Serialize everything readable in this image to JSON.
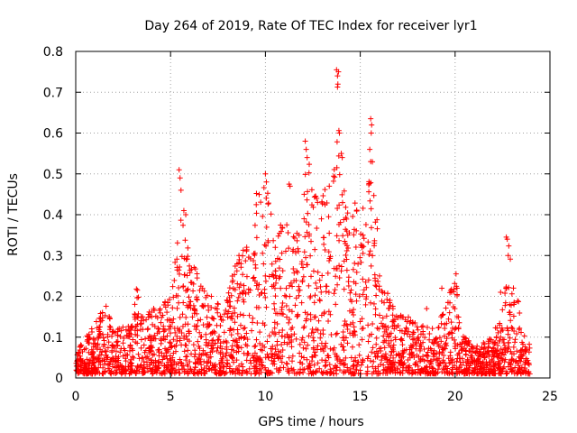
{
  "chart_data": {
    "type": "scatter",
    "title": "Day 264 of 2019, Rate Of TEC Index for receiver lyr1",
    "xlabel": "GPS time / hours",
    "ylabel": "ROTI / TECUs",
    "xlim": [
      0,
      25
    ],
    "ylim": [
      0,
      0.8
    ],
    "xticks": [
      0,
      5,
      10,
      15,
      20,
      25
    ],
    "xtick_labels": [
      "0",
      "5",
      "10",
      "15",
      "20",
      "25"
    ],
    "yticks": [
      0,
      0.1,
      0.2,
      0.3,
      0.4,
      0.5,
      0.6,
      0.7,
      0.8
    ],
    "ytick_labels": [
      "0",
      "0.1",
      "0.2",
      "0.3",
      "0.4",
      "0.5",
      "0.6",
      "0.7",
      "0.8"
    ],
    "grid": true,
    "marker": "+",
    "color": "#ff0000",
    "envelope": {
      "x": [
        0,
        0.5,
        1.0,
        1.3,
        1.5,
        2.0,
        3.0,
        3.2,
        3.5,
        4.0,
        5.0,
        5.4,
        5.6,
        6.0,
        7.0,
        8.0,
        8.5,
        9.0,
        9.5,
        10.0,
        10.5,
        11.0,
        11.5,
        12.0,
        12.3,
        12.5,
        13.0,
        13.3,
        13.6,
        13.8,
        14.0,
        14.5,
        15.0,
        15.3,
        15.6,
        16.0,
        16.5,
        17.0,
        18.0,
        19.0,
        19.5,
        20.0,
        20.5,
        21.0,
        22.0,
        22.5,
        22.8,
        23.0,
        23.5,
        24.0
      ],
      "y": [
        0.07,
        0.1,
        0.13,
        0.16,
        0.2,
        0.12,
        0.14,
        0.22,
        0.16,
        0.17,
        0.2,
        0.35,
        0.42,
        0.3,
        0.2,
        0.2,
        0.3,
        0.35,
        0.45,
        0.5,
        0.36,
        0.43,
        0.36,
        0.46,
        0.58,
        0.45,
        0.44,
        0.5,
        0.5,
        0.76,
        0.55,
        0.38,
        0.5,
        0.4,
        0.63,
        0.3,
        0.2,
        0.16,
        0.14,
        0.12,
        0.18,
        0.25,
        0.1,
        0.08,
        0.1,
        0.2,
        0.34,
        0.28,
        0.15,
        0.07
      ]
    },
    "outliers": [
      {
        "x": 3.2,
        "y": 0.218
      },
      {
        "x": 3.25,
        "y": 0.215
      },
      {
        "x": 5.45,
        "y": 0.51
      },
      {
        "x": 5.5,
        "y": 0.49
      },
      {
        "x": 5.55,
        "y": 0.46
      },
      {
        "x": 5.7,
        "y": 0.41
      },
      {
        "x": 5.8,
        "y": 0.4
      },
      {
        "x": 10.0,
        "y": 0.5
      },
      {
        "x": 10.05,
        "y": 0.48
      },
      {
        "x": 11.25,
        "y": 0.475
      },
      {
        "x": 11.3,
        "y": 0.47
      },
      {
        "x": 12.1,
        "y": 0.58
      },
      {
        "x": 12.15,
        "y": 0.56
      },
      {
        "x": 12.2,
        "y": 0.54
      },
      {
        "x": 12.7,
        "y": 0.44
      },
      {
        "x": 12.75,
        "y": 0.43
      },
      {
        "x": 13.75,
        "y": 0.755
      },
      {
        "x": 13.8,
        "y": 0.74
      },
      {
        "x": 13.85,
        "y": 0.75
      },
      {
        "x": 13.82,
        "y": 0.72
      },
      {
        "x": 13.9,
        "y": 0.6
      },
      {
        "x": 14.0,
        "y": 0.55
      },
      {
        "x": 14.05,
        "y": 0.54
      },
      {
        "x": 15.55,
        "y": 0.635
      },
      {
        "x": 15.6,
        "y": 0.62
      },
      {
        "x": 15.58,
        "y": 0.6
      },
      {
        "x": 15.5,
        "y": 0.56
      },
      {
        "x": 15.55,
        "y": 0.53
      },
      {
        "x": 18.5,
        "y": 0.17
      },
      {
        "x": 19.3,
        "y": 0.22
      },
      {
        "x": 20.05,
        "y": 0.255
      },
      {
        "x": 20.1,
        "y": 0.22
      },
      {
        "x": 22.7,
        "y": 0.345
      },
      {
        "x": 22.75,
        "y": 0.34
      },
      {
        "x": 22.8,
        "y": 0.3
      },
      {
        "x": 22.4,
        "y": 0.21
      },
      {
        "x": 23.1,
        "y": 0.18
      }
    ]
  }
}
